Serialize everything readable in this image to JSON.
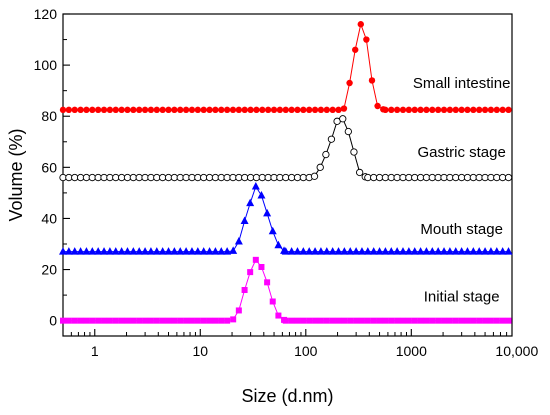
{
  "chart_data": {
    "type": "scatter",
    "xscale": "log",
    "xlabel": "Size (d.nm)",
    "ylabel": "Volume (%)",
    "xlim": [
      0.5,
      9000
    ],
    "ylim": [
      -6,
      120
    ],
    "xticks": [
      {
        "value": 1,
        "label": "1"
      },
      {
        "value": 10,
        "label": "10"
      },
      {
        "value": 100,
        "label": "100"
      },
      {
        "value": 1000,
        "label": "1000"
      },
      {
        "value": 10000,
        "label": "10,000"
      }
    ],
    "yticks": [
      0,
      20,
      40,
      60,
      80,
      100,
      120
    ],
    "grid": false,
    "legend": "none",
    "series": [
      {
        "name": "Initial stage",
        "color": "#ff00ff",
        "marker": "square",
        "fill": true,
        "baseline": 0,
        "points": [
          [
            20.5,
            0.5
          ],
          [
            23.2,
            4
          ],
          [
            26.3,
            12
          ],
          [
            29.7,
            19
          ],
          [
            33.6,
            23.8
          ],
          [
            38.0,
            21
          ],
          [
            43.0,
            15
          ],
          [
            48.6,
            7.5
          ],
          [
            55.0,
            2
          ],
          [
            62.2,
            0.3
          ]
        ]
      },
      {
        "name": "Mouth stage",
        "color": "#0000ff",
        "marker": "triangle",
        "fill": true,
        "baseline": 27,
        "points": [
          [
            20.5,
            27.3
          ],
          [
            23.2,
            31
          ],
          [
            26.3,
            39
          ],
          [
            29.7,
            46
          ],
          [
            33.6,
            52.5
          ],
          [
            38.0,
            49
          ],
          [
            43.0,
            42
          ],
          [
            48.6,
            35
          ],
          [
            55.0,
            29.5
          ],
          [
            62.2,
            27.3
          ]
        ]
      },
      {
        "name": "Gastric stage",
        "color": "#000000",
        "marker": "circle",
        "fill": false,
        "baseline": 56,
        "points": [
          [
            121,
            56.5
          ],
          [
            137,
            60
          ],
          [
            155,
            65
          ],
          [
            175,
            71
          ],
          [
            198,
            78
          ],
          [
            224,
            79
          ],
          [
            253,
            74
          ],
          [
            286,
            66
          ],
          [
            324,
            58
          ],
          [
            366,
            56.3
          ]
        ]
      },
      {
        "name": "Small intestine",
        "color": "#ff0000",
        "marker": "circle",
        "fill": true,
        "baseline": 82.5,
        "points": [
          [
            230,
            83
          ],
          [
            260,
            93
          ],
          [
            294,
            106
          ],
          [
            332,
            116
          ],
          [
            375,
            110
          ],
          [
            424,
            94
          ],
          [
            479,
            84
          ],
          [
            542,
            82.7
          ]
        ]
      }
    ],
    "labels": [
      {
        "text": "Small intestine",
        "x": 3000,
        "y": 91
      },
      {
        "text": "Gastric stage",
        "x": 3000,
        "y": 64
      },
      {
        "text": "Mouth stage",
        "x": 3000,
        "y": 34
      },
      {
        "text": "Initial stage",
        "x": 3000,
        "y": 7.5
      }
    ]
  }
}
